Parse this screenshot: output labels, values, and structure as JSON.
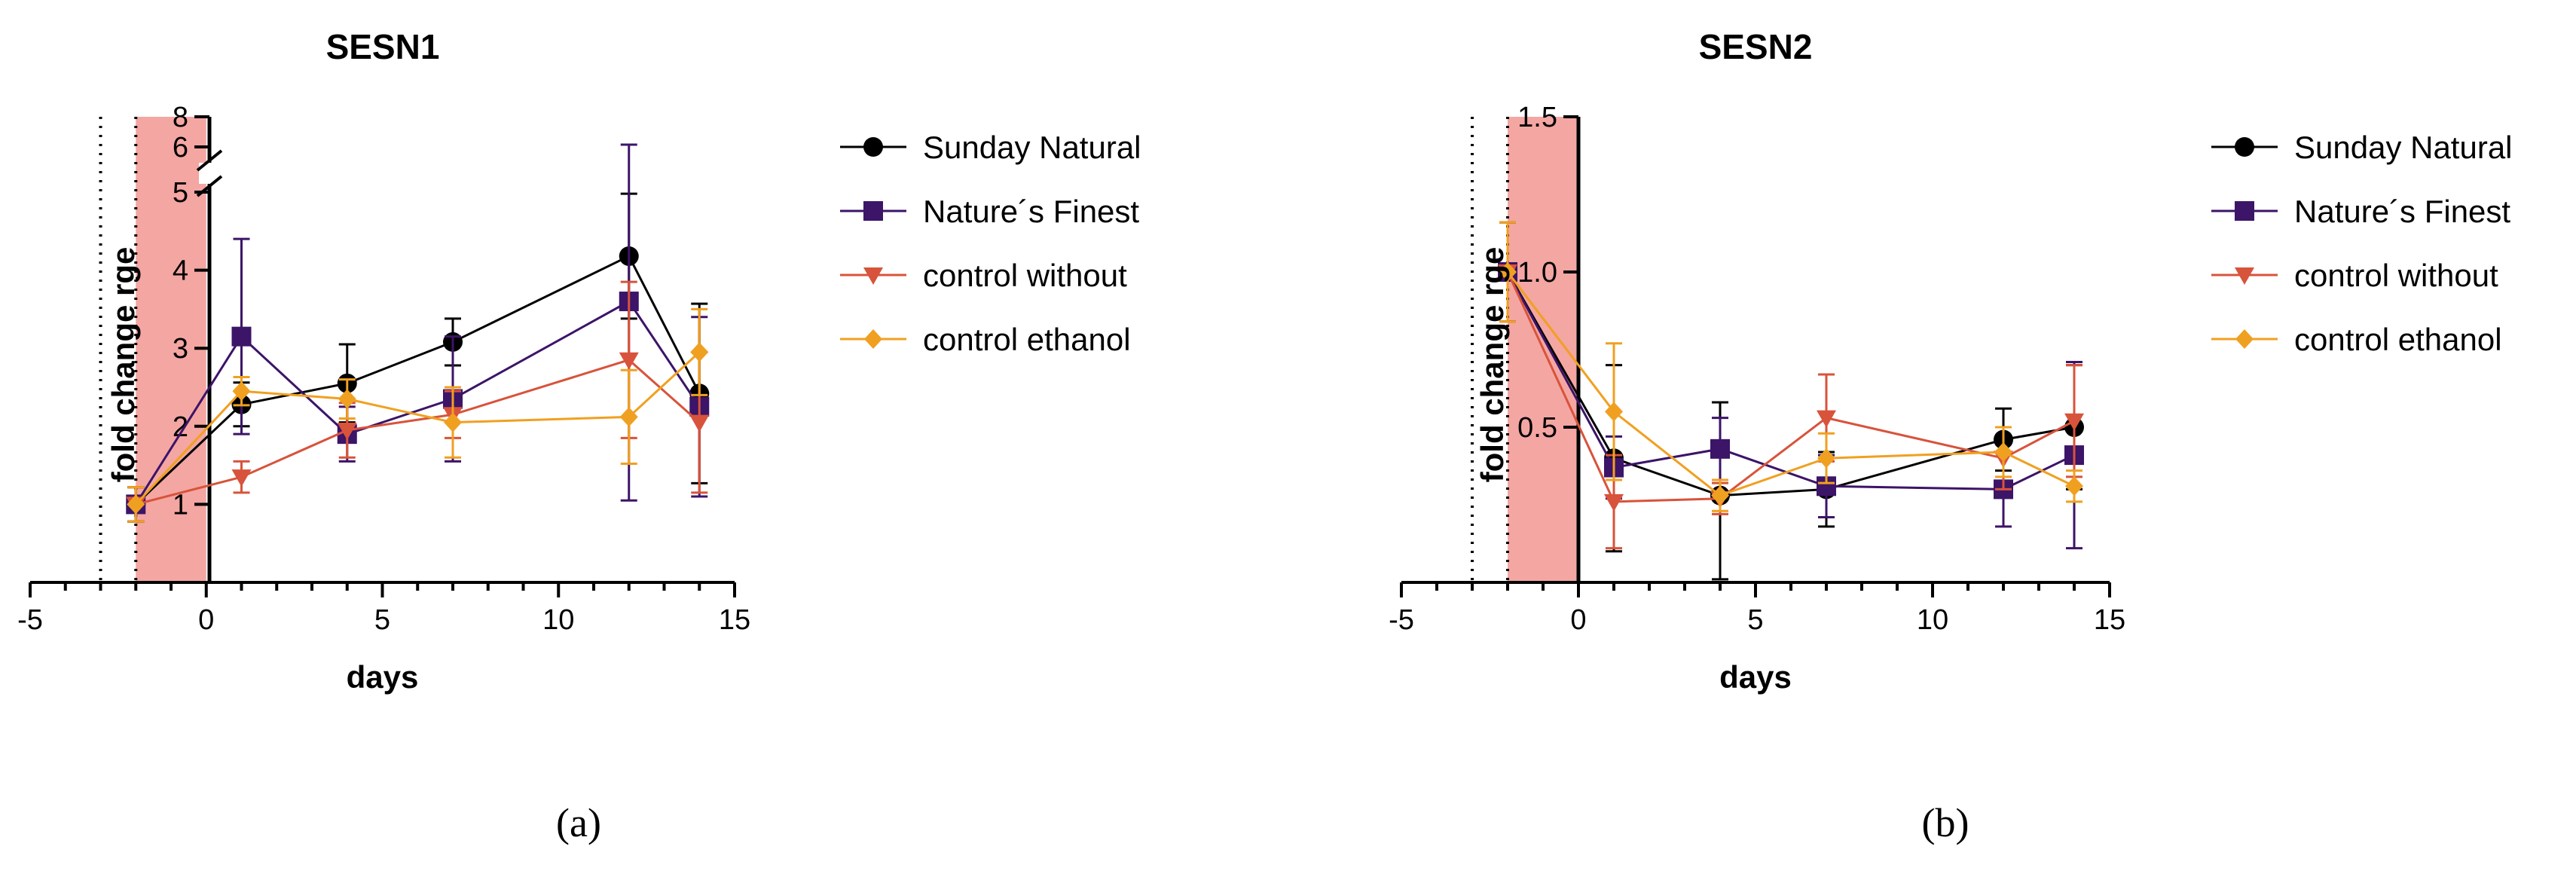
{
  "chart_data": [
    {
      "type": "line",
      "panel_label": "(a)",
      "title": "SESN1",
      "xlabel": "days",
      "ylabel": "fold change rge",
      "xlim": [
        -5,
        15
      ],
      "xticks": [
        -5,
        0,
        5,
        10,
        15
      ],
      "x_tick_labels": [
        "-5",
        "0",
        "5",
        "10",
        "15"
      ],
      "y_scale": "broken",
      "y_lower_segment": [
        0,
        5
      ],
      "y_upper_segment": [
        5.5,
        8
      ],
      "yticks": [
        1,
        2,
        3,
        4,
        5,
        6,
        8
      ],
      "y_tick_labels": [
        "1",
        "2",
        "3",
        "4",
        "5",
        "6",
        "8"
      ],
      "shaded_interval": [
        -2,
        0
      ],
      "shaded_color": "#f4a6a2",
      "dotted_vline_x": -3,
      "dotted_vline2_x": -2,
      "series": [
        {
          "name": "Sunday Natural",
          "color": "#000000",
          "marker": "circle",
          "x": [
            -2,
            1,
            4,
            7,
            12,
            14
          ],
          "y": [
            1.0,
            2.28,
            2.55,
            3.08,
            4.18,
            2.42
          ],
          "err": [
            0.22,
            0.28,
            0.5,
            0.3,
            0.8,
            1.15
          ]
        },
        {
          "name": "Nature´s Finest",
          "color": "#3c1468",
          "marker": "square",
          "x": [
            -2,
            1,
            4,
            7,
            12,
            14
          ],
          "y": [
            1.0,
            3.15,
            1.9,
            2.35,
            3.6,
            2.25
          ],
          "err": [
            0.22,
            1.25,
            0.35,
            0.8,
            2.55,
            1.15
          ]
        },
        {
          "name": "control without",
          "color": "#d8533b",
          "marker": "triangle-down",
          "x": [
            -2,
            1,
            4,
            7,
            12,
            14
          ],
          "y": [
            1.0,
            1.35,
            1.95,
            2.15,
            2.85,
            2.05
          ],
          "err": [
            0.22,
            0.2,
            0.35,
            0.3,
            1.0,
            0.9
          ]
        },
        {
          "name": "control ethanol",
          "color": "#f0a020",
          "marker": "diamond",
          "x": [
            -2,
            1,
            4,
            7,
            12,
            14
          ],
          "y": [
            1.0,
            2.45,
            2.35,
            2.05,
            2.12,
            2.95
          ],
          "err": [
            0.22,
            0.18,
            0.25,
            0.45,
            0.6,
            0.55
          ]
        }
      ]
    },
    {
      "type": "line",
      "panel_label": "(b)",
      "title": "SESN2",
      "xlabel": "days",
      "ylabel": "fold change rge",
      "xlim": [
        -5,
        15
      ],
      "ylim": [
        0,
        1.5
      ],
      "xticks": [
        -5,
        0,
        5,
        10,
        15
      ],
      "x_tick_labels": [
        "-5",
        "0",
        "5",
        "10",
        "15"
      ],
      "yticks": [
        0.5,
        1.0,
        1.5
      ],
      "y_tick_labels": [
        "0.5",
        "1.0",
        "1.5"
      ],
      "shaded_interval": [
        -2,
        0
      ],
      "shaded_color": "#f4a6a2",
      "dotted_vline_x": -3,
      "dotted_vline2_x": -2,
      "series": [
        {
          "name": "Sunday Natural",
          "color": "#000000",
          "marker": "circle",
          "x": [
            -2,
            1,
            4,
            7,
            12,
            14
          ],
          "y": [
            1.0,
            0.4,
            0.28,
            0.3,
            0.46,
            0.5
          ],
          "err": [
            0.16,
            0.3,
            0.3,
            0.12,
            0.1,
            0.2
          ]
        },
        {
          "name": "Nature´s Finest",
          "color": "#3c1468",
          "marker": "square",
          "x": [
            -2,
            1,
            4,
            7,
            12,
            14
          ],
          "y": [
            1.0,
            0.37,
            0.43,
            0.31,
            0.3,
            0.41
          ],
          "err": [
            0.16,
            0.1,
            0.1,
            0.1,
            0.12,
            0.3
          ]
        },
        {
          "name": "control without",
          "color": "#d8533b",
          "marker": "triangle-down",
          "x": [
            -2,
            1,
            4,
            7,
            12,
            14
          ],
          "y": [
            1.0,
            0.26,
            0.27,
            0.53,
            0.4,
            0.52
          ],
          "err": [
            0.16,
            0.15,
            0.05,
            0.14,
            0.1,
            0.18
          ]
        },
        {
          "name": "control ethanol",
          "color": "#f0a020",
          "marker": "diamond",
          "x": [
            -2,
            1,
            4,
            7,
            12,
            14
          ],
          "y": [
            1.0,
            0.55,
            0.28,
            0.4,
            0.42,
            0.31
          ],
          "err": [
            0.16,
            0.22,
            0.05,
            0.08,
            0.08,
            0.05
          ]
        }
      ]
    }
  ]
}
